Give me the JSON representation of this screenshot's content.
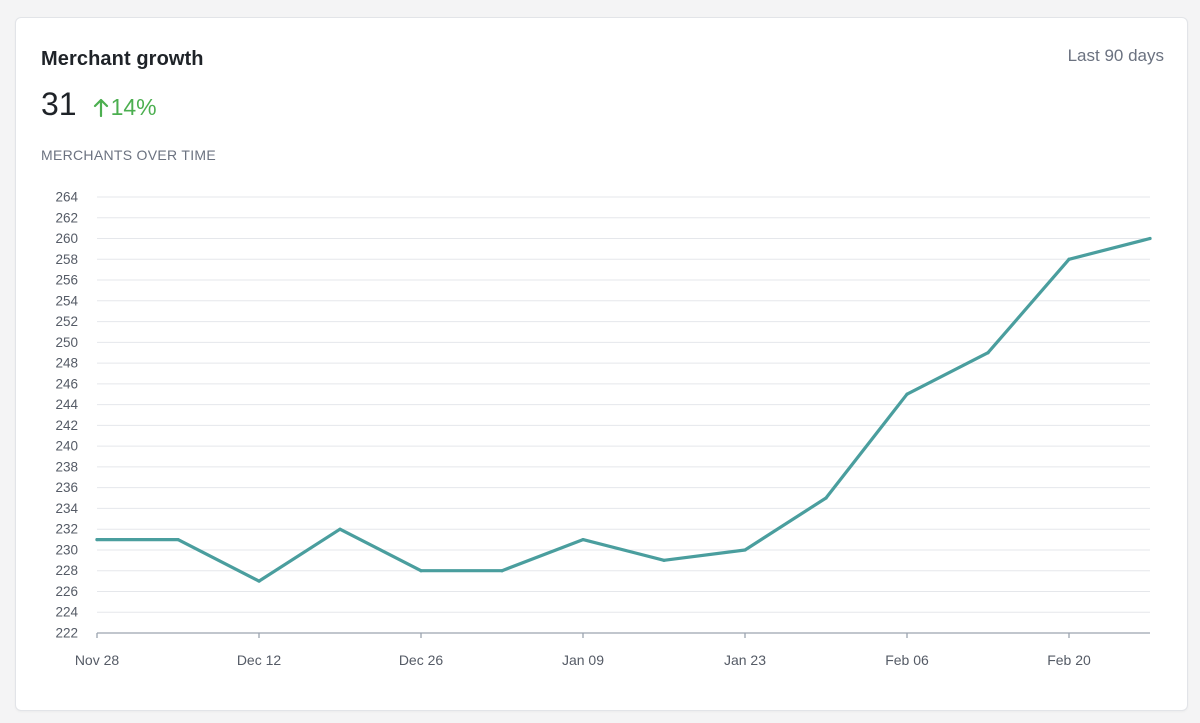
{
  "card": {
    "title": "Merchant growth",
    "range": "Last 90 days",
    "metric_value": "31",
    "delta": "14%",
    "section_label": "MERCHANTS OVER TIME"
  },
  "colors": {
    "line": "#4a9e9e",
    "delta_positive": "#4caf50",
    "grid": "#e5e7eb",
    "axis": "#9ca3af",
    "tick_text": "#555b66"
  },
  "icons": {
    "delta": "arrow-up-icon"
  },
  "chart_data": {
    "type": "line",
    "x": [
      "Nov 28",
      "Dec 05",
      "Dec 12",
      "Dec 19",
      "Dec 26",
      "Jan 02",
      "Jan 09",
      "Jan 16",
      "Jan 23",
      "Jan 30",
      "Feb 06",
      "Feb 13",
      "Feb 20",
      "Feb 27"
    ],
    "x_tick_labels": [
      "Nov 28",
      "Dec 12",
      "Dec 26",
      "Jan 09",
      "Jan 23",
      "Feb 06",
      "Feb 20"
    ],
    "series": [
      {
        "values": [
          231,
          231,
          227,
          232,
          228,
          228,
          231,
          229,
          230,
          235,
          245,
          249,
          258,
          260
        ]
      }
    ],
    "ylim": [
      222,
      264
    ],
    "y_ticks": [
      222,
      224,
      226,
      228,
      230,
      232,
      234,
      236,
      238,
      240,
      242,
      244,
      246,
      248,
      250,
      252,
      254,
      256,
      258,
      260,
      262,
      264
    ],
    "title": "",
    "xlabel": "",
    "ylabel": "",
    "grid": true,
    "legend": "none"
  }
}
